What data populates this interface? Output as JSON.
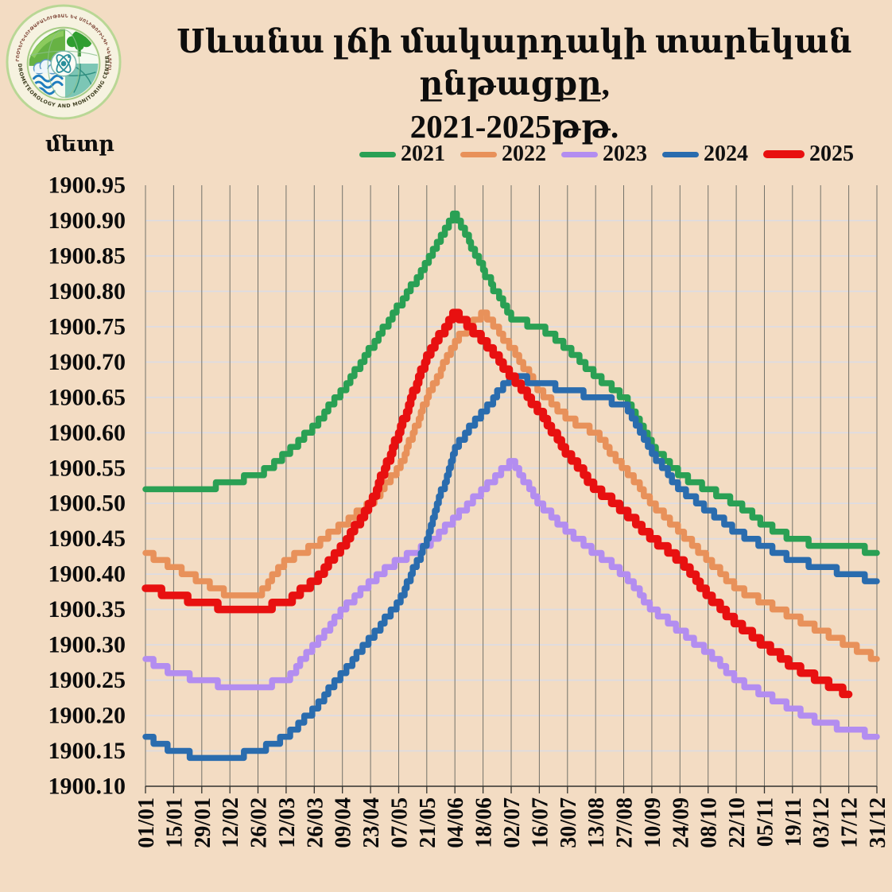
{
  "page": {
    "background": "#f3dcc3"
  },
  "logo": {
    "top_text": "«ՀԻԴՐՈՕԴԵՐԵՎՈՒԹԱԲԱՆՈՒԹՅԱՆ ԵՎ ՄՈՆԻԹՈՐԻՆԳԻ ԿԵՆՏՐՈՆ»",
    "bottom_text": "HYDROMETEOROLOGY AND MONITORING CENTER"
  },
  "title_line1": "Սևանա լճի մակարդակի տարեկան ընթացքը,",
  "title_line2": "2021-2025թթ.",
  "y_axis_unit": "մետր",
  "chart_data": {
    "type": "line",
    "title": "Սևանա լճի մակարդակի տարեկան ընթացքը, 2021-2025թթ.",
    "ylabel": "մետր",
    "ylim": [
      1900.1,
      1900.95
    ],
    "ytick_step": 0.05,
    "grid": true,
    "legend_position": "top",
    "y_tick_labels": [
      "1900.95",
      "1900.90",
      "1900.85",
      "1900.80",
      "1900.75",
      "1900.70",
      "1900.65",
      "1900.60",
      "1900.55",
      "1900.50",
      "1900.45",
      "1900.40",
      "1900.35",
      "1900.30",
      "1900.25",
      "1900.20",
      "1900.15",
      "1900.10"
    ],
    "x_tick_labels": [
      "01/01",
      "15/01",
      "29/01",
      "12/02",
      "26/02",
      "12/03",
      "26/03",
      "09/04",
      "23/04",
      "07/05",
      "21/05",
      "04/06",
      "18/06",
      "02/07",
      "16/07",
      "30/07",
      "13/08",
      "27/08",
      "10/09",
      "24/09",
      "08/10",
      "22/10",
      "05/11",
      "19/11",
      "03/12",
      "17/12",
      "31/12"
    ],
    "series": [
      {
        "name": "2021",
        "color": "#2aa054",
        "values": [
          1900.52,
          1900.52,
          1900.52,
          1900.53,
          1900.54,
          1900.57,
          1900.61,
          1900.66,
          1900.72,
          1900.78,
          1900.84,
          1900.91,
          1900.83,
          1900.76,
          1900.75,
          1900.72,
          1900.68,
          1900.65,
          1900.58,
          1900.54,
          1900.52,
          1900.5,
          1900.47,
          1900.45,
          1900.44,
          1900.44,
          1900.43
        ]
      },
      {
        "name": "2022",
        "color": "#e8915a",
        "values": [
          1900.43,
          1900.41,
          1900.39,
          1900.37,
          1900.37,
          1900.42,
          1900.44,
          1900.47,
          1900.5,
          1900.55,
          1900.65,
          1900.73,
          1900.77,
          1900.72,
          1900.66,
          1900.62,
          1900.6,
          1900.55,
          1900.5,
          1900.46,
          1900.42,
          1900.38,
          1900.36,
          1900.34,
          1900.32,
          1900.3,
          1900.28
        ]
      },
      {
        "name": "2023",
        "color": "#b38df0",
        "values": [
          1900.28,
          1900.26,
          1900.25,
          1900.24,
          1900.24,
          1900.25,
          1900.3,
          1900.35,
          1900.39,
          1900.42,
          1900.44,
          1900.48,
          1900.52,
          1900.56,
          1900.5,
          1900.46,
          1900.43,
          1900.4,
          1900.35,
          1900.32,
          1900.29,
          1900.25,
          1900.23,
          1900.21,
          1900.19,
          1900.18,
          1900.17
        ]
      },
      {
        "name": "2024",
        "color": "#2a6cae",
        "values": [
          1900.17,
          1900.15,
          1900.14,
          1900.14,
          1900.15,
          1900.17,
          1900.21,
          1900.26,
          1900.31,
          1900.36,
          1900.45,
          1900.58,
          1900.63,
          1900.68,
          1900.67,
          1900.66,
          1900.65,
          1900.64,
          1900.57,
          1900.52,
          1900.49,
          1900.46,
          1900.44,
          1900.42,
          1900.41,
          1900.4,
          1900.39
        ]
      },
      {
        "name": "2025",
        "color": "#e81010",
        "thick": true,
        "values": [
          1900.38,
          1900.37,
          1900.36,
          1900.35,
          1900.35,
          1900.36,
          1900.39,
          1900.44,
          1900.5,
          1900.6,
          1900.71,
          1900.77,
          1900.73,
          1900.68,
          1900.63,
          1900.57,
          1900.52,
          1900.49,
          1900.45,
          1900.42,
          1900.37,
          1900.33,
          1900.3,
          1900.27,
          1900.25,
          1900.23,
          null
        ]
      }
    ]
  }
}
